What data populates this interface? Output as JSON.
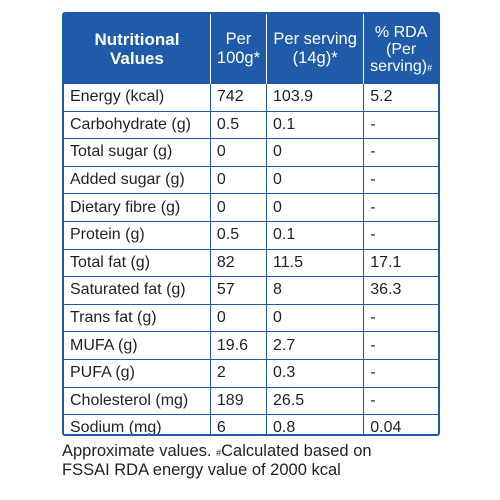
{
  "header": {
    "col1_line1": "Nutritional",
    "col1_line2": "Values",
    "col2_line1": "Per",
    "col2_line2": "100g*",
    "col3_line1": "Per serving",
    "col3_line2": "(14g)*",
    "col4_line1": "% RDA",
    "col4_line2": "(Per",
    "col4_line3": "serving)",
    "col4_mark": "#"
  },
  "rows": [
    {
      "nutrient": "Energy (kcal)",
      "per100g": "742",
      "perServing": "103.9",
      "rda": "5.2"
    },
    {
      "nutrient": "Carbohydrate (g)",
      "per100g": "0.5",
      "perServing": "0.1",
      "rda": "-"
    },
    {
      "nutrient": "Total sugar (g)",
      "per100g": "0",
      "perServing": "0",
      "rda": "-"
    },
    {
      "nutrient": "Added sugar (g)",
      "per100g": "0",
      "perServing": "0",
      "rda": "-"
    },
    {
      "nutrient": "Dietary fibre (g)",
      "per100g": "0",
      "perServing": "0",
      "rda": "-"
    },
    {
      "nutrient": "Protein (g)",
      "per100g": "0.5",
      "perServing": "0.1",
      "rda": "-"
    },
    {
      "nutrient": "Total fat (g)",
      "per100g": "82",
      "perServing": "11.5",
      "rda": "17.1"
    },
    {
      "nutrient": "Saturated fat (g)",
      "per100g": "57",
      "perServing": "8",
      "rda": "36.3"
    },
    {
      "nutrient": "Trans fat (g)",
      "per100g": "0",
      "perServing": "0",
      "rda": "-"
    },
    {
      "nutrient": "MUFA (g)",
      "per100g": "19.6",
      "perServing": "2.7",
      "rda": "-"
    },
    {
      "nutrient": "PUFA (g)",
      "per100g": "2",
      "perServing": "0.3",
      "rda": "-"
    },
    {
      "nutrient": "Cholesterol (mg)",
      "per100g": "189",
      "perServing": "26.5",
      "rda": "-"
    },
    {
      "nutrient": "Sodium (mg)",
      "per100g": "6",
      "perServing": "0.8",
      "rda": "0.04"
    }
  ],
  "footnote": {
    "part1": "Approximate values.",
    "mark": "#",
    "part2": "Calculated based on",
    "line2": "FSSAI RDA energy value of 2000 kcal"
  },
  "colors": {
    "header_bg": "#1f5ba8",
    "border": "#1f5ba8",
    "text": "#231f20"
  }
}
